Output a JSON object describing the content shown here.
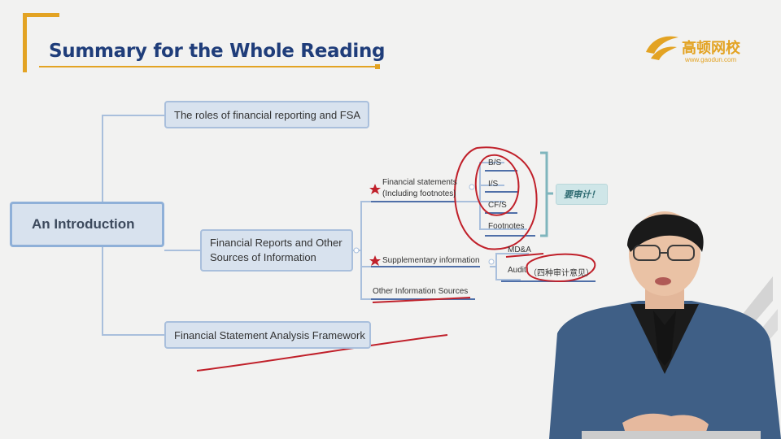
{
  "slide": {
    "title": "Summary for the Whole Reading",
    "logo_name": "高顿网校",
    "logo_url": "www.gaodun.com"
  },
  "mindmap": {
    "root": "An Introduction",
    "level1": [
      "The roles of financial reporting and FSA",
      "Financial Reports and Other Sources of Information",
      "Financial Statement Analysis Framework"
    ],
    "level2": {
      "financial_statements": "Financial statements",
      "including_footnotes": "(Including footnotes)",
      "supplementary": "Supplementary information",
      "other_sources": "Other Information Sources"
    },
    "statements": [
      "B/S",
      "I/S",
      "CF/S",
      "Footnotes"
    ],
    "supplementary_items": [
      "MD&A",
      "Audit"
    ],
    "audit_note": "（四种审计意见）",
    "sticky_note": "要审计！"
  },
  "colors": {
    "title": "#1f3d7a",
    "accent": "#e3a323",
    "node_fill": "#d8e2ee",
    "node_border": "#a9bfdc",
    "annotation": "#c0202a"
  }
}
